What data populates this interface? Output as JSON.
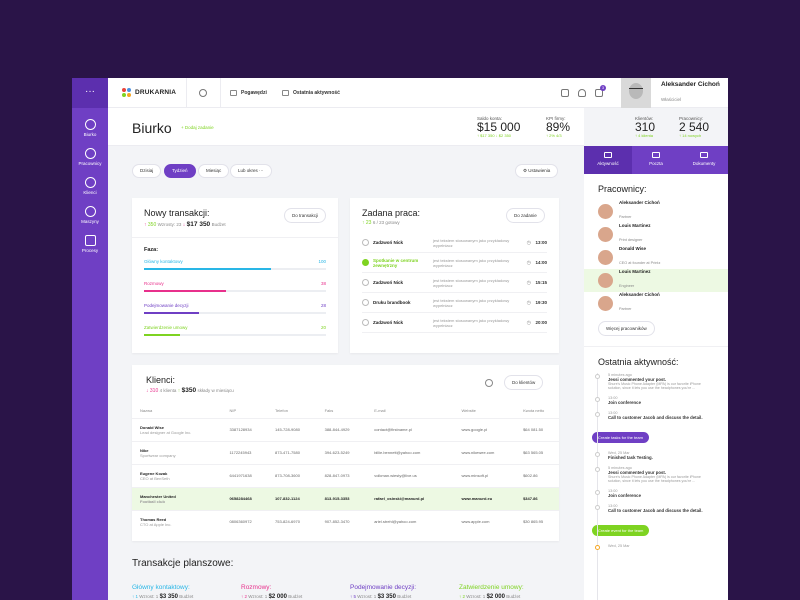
{
  "app": {
    "menu_label": "···",
    "brand": "DRUKARNIA",
    "brand_colors": [
      "#e8453c",
      "#4a90e2",
      "#7ed321",
      "#f5a623"
    ]
  },
  "sidebar": {
    "items": [
      {
        "label": "Biurko"
      },
      {
        "label": "Pracownicy"
      },
      {
        "label": "Klienci"
      },
      {
        "label": "Maszyny"
      },
      {
        "label": "Procesy"
      }
    ]
  },
  "topbar": {
    "link1": "Pogawędzi",
    "link2": "Ostatnia aktywność",
    "badge": "3",
    "user_name": "Aleksander Cichoń",
    "user_role": "Właściciel"
  },
  "header": {
    "title": "Biurko",
    "add_label": "Dodaj zadanie",
    "kpis": [
      {
        "label": "Saldo konta:",
        "value": "$15 000",
        "sub": "↑ $17 350   ↓ $2 350"
      },
      {
        "label": "KPI firmy:",
        "value": "89%",
        "sub": "↑ 2% 4/3"
      },
      {
        "label": "Klientów:",
        "value": "310",
        "sub": "↑ 4 klienta"
      },
      {
        "label": "Pracownicy:",
        "value": "2 540",
        "sub": "↑ 14 nowych"
      }
    ]
  },
  "filters": {
    "today": "Dzisiaj",
    "week": "Tydzień",
    "month": "Miesiąc",
    "custom": "Lub okres",
    "more": "···",
    "settings": "Ustawienia"
  },
  "transactions": {
    "title": "Nowy transakcji:",
    "count": "350",
    "count_note": "Wzrosty: 23",
    "amount": "$17 350",
    "amount_note": "Budżet",
    "button": "Do transakcji",
    "phase_title": "Faza:",
    "phases": [
      {
        "name": "Główny kontaktowy",
        "value": "100",
        "percent": 70,
        "color": "#29b6e6"
      },
      {
        "name": "Rozmowy",
        "value": "38",
        "percent": 45,
        "color": "#e8308c"
      },
      {
        "name": "Podejmowanie decyzji",
        "value": "28",
        "percent": 30,
        "color": "#6f3fc4"
      },
      {
        "name": "Zatwierdzenie umowy",
        "value": "20",
        "percent": 20,
        "color": "#7ed321"
      }
    ]
  },
  "tasks": {
    "title": "Zadana praca:",
    "progress": "23",
    "progress_note": "6 / 23 gotowy",
    "button": "Do zadanie",
    "items": [
      {
        "name": "Zadzwoń Nick",
        "desc": "jest tekstem stosowanym jako przykładowy wypełniacz",
        "time": "13:00",
        "done": false
      },
      {
        "name": "Spotkanie w centrum zewnętrzny",
        "desc": "jest tekstem stosowanym jako przykładowy wypełniacz",
        "time": "14:00",
        "done": true
      },
      {
        "name": "Zadzwoń Nick",
        "desc": "jest tekstem stosowanym jako przykładowy wypełniacz",
        "time": "15:15",
        "done": false
      },
      {
        "name": "Druku brandbook",
        "desc": "jest tekstem stosowanym jako przykładowy wypełniacz",
        "time": "19:30",
        "done": false
      },
      {
        "name": "Zadzwoń Nick",
        "desc": "jest tekstem stosowanym jako przykładowy wypełniacz",
        "time": "20:00",
        "done": false
      }
    ]
  },
  "clients": {
    "title": "Klienci:",
    "count": "310",
    "count_note": "4 klienta",
    "amount": "$350",
    "amount_note": "składy w miesiącu",
    "button": "Do klientów",
    "columns": [
      "Nazwa",
      "NIP",
      "Telefon",
      "Faks",
      "E-mail",
      "Website",
      "Kwota netto"
    ],
    "rows": [
      {
        "name": "Donald Wise",
        "sub": "Lead designer at Google Inc.",
        "nip": "3387128934",
        "tel": "145-728-9080",
        "fax": "388-844-4929",
        "email": "contact@firstname.pl",
        "web": "www.google.pl",
        "amount": "$64 081.50"
      },
      {
        "name": "Nike",
        "sub": "Sportwear company",
        "nip": "1172245943",
        "tel": "873-471-7580",
        "fax": "394-623-5249",
        "email": "billie.bennett@yahoo.com",
        "web": "www.nikewee.com",
        "amount": "$63 565.05"
      },
      {
        "name": "Eugene Kozak",
        "sub": "CEO at BenSeth",
        "nip": "6441971638",
        "tel": "873-708-3600",
        "fax": "828-847-0973",
        "email": "volkman.wiesty@live.us",
        "web": "www.minsoft.pl",
        "amount": "$602.86"
      },
      {
        "name": "Manchester United",
        "sub": "Football club",
        "nip": "0658284468",
        "tel": "107-832-1124",
        "fax": "813-915-3353",
        "email": "rafael_osinski@manurd.pl",
        "web": "www.manurd.eu",
        "amount": "$347.86"
      },
      {
        "name": "Thomas Reed",
        "sub": "CTO at Apple Inc.",
        "nip": "0806360972",
        "tel": "753-824-6970",
        "fax": "907-852-3470",
        "email": "ariel.strehl@yahoo.com",
        "web": "www.apple.com",
        "amount": "$30 865.95"
      }
    ]
  },
  "board": {
    "title": "Transakcje planszowe:",
    "columns": [
      {
        "name": "Główny kontaktowy:",
        "color": "#29b6e6",
        "count": "1",
        "count_note": "Wzrost: 1",
        "amount": "$3 350",
        "amount_note": "Budżet"
      },
      {
        "name": "Rozmowy:",
        "color": "#e8308c",
        "count": "2",
        "count_note": "Wzrost: 1",
        "amount": "$2 000",
        "amount_note": "Budżet"
      },
      {
        "name": "Podejmowanie decyzji:",
        "color": "#6f3fc4",
        "count": "5",
        "count_note": "Wzrost: 1",
        "amount": "$3 350",
        "amount_note": "Budżet"
      },
      {
        "name": "Zatwierdzenie umowy:",
        "color": "#7ed321",
        "count": "2",
        "count_note": "Wzrost: 1",
        "amount": "$2 000",
        "amount_note": "Budżet"
      }
    ]
  },
  "right": {
    "tabs": [
      "Aktywność",
      "Poczta",
      "Dokumenty"
    ],
    "employees_title": "Pracownicy:",
    "employees": [
      {
        "name": "Aleksander Cichoń",
        "role": "Partner"
      },
      {
        "name": "Louis Martinez",
        "role": "Print designer"
      },
      {
        "name": "Donald Wise",
        "role": "CEO at founder at Printz"
      },
      {
        "name": "Louis Martinez",
        "role": "Engineer"
      },
      {
        "name": "Aleksander Cichoń",
        "role": "Partner"
      }
    ],
    "more_employees": "Więcej pracowników",
    "activity_title": "Ostatnia aktywność:",
    "activity": [
      {
        "date": "5 minutes ago",
        "title": "Jessi commented your post.",
        "text": "Shure's Music Phone Adapter (MPA) is our favorite iPhone solution, since it lets you use the headphones you're ..."
      },
      {
        "date": "13:00",
        "title": "Join conference",
        "text": ""
      },
      {
        "date": "13:00",
        "title": "Call to customer Jacob and discuss the detail.",
        "text": ""
      }
    ],
    "activity_btn1": "Create tasks for the team",
    "activity2": [
      {
        "date": "Wed, 25 Mar",
        "title": "Finished task Testing.",
        "text": ""
      },
      {
        "date": "5 minutes ago",
        "title": "Jessi commented your post.",
        "text": "Shure's Music Phone Adapter (MPA) is our favorite iPhone solution, since it lets you use the headphones you're ..."
      },
      {
        "date": "13:00",
        "title": "Join conference",
        "text": ""
      },
      {
        "date": "13:00",
        "title": "Call to customer Jacob and discuss the detail.",
        "text": ""
      }
    ],
    "activity_btn2": "Create event for the team",
    "last_date": "Wed, 25 Mar"
  }
}
